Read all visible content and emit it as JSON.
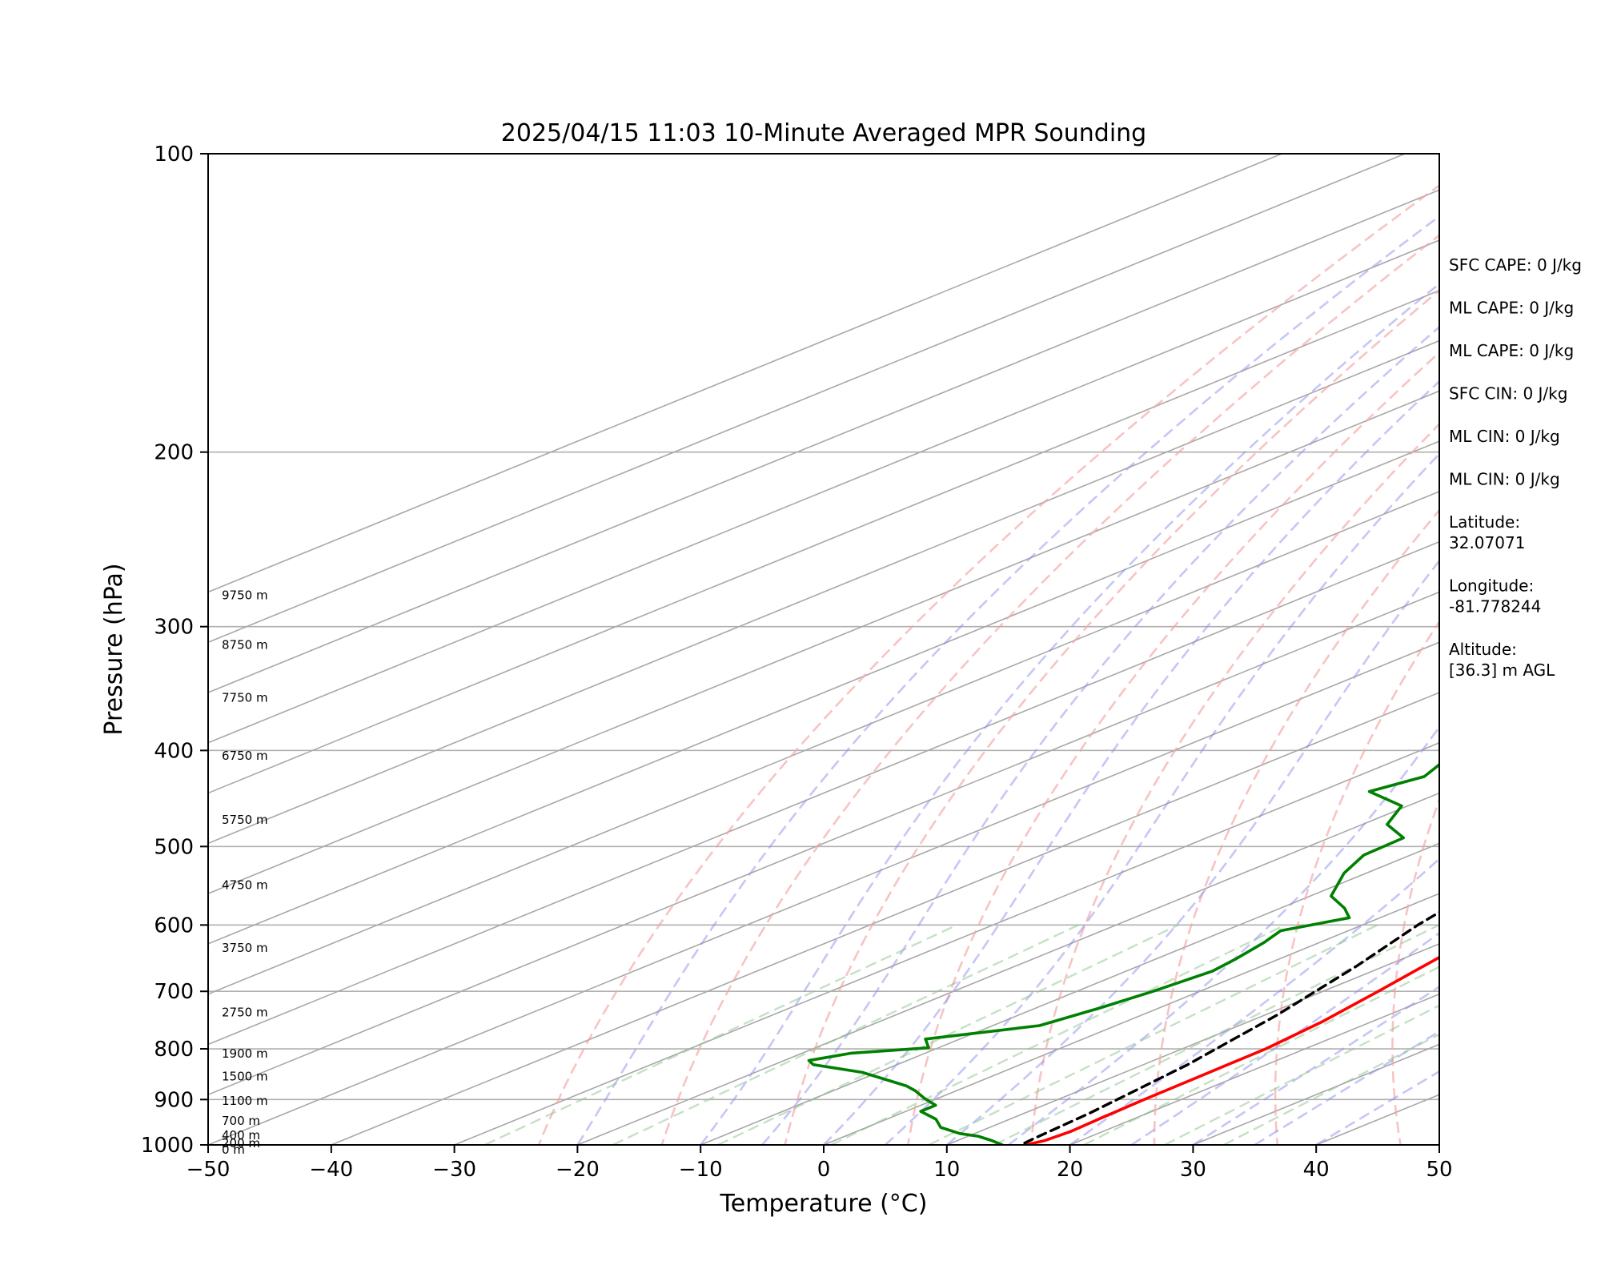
{
  "chart_data": {
    "type": "skew-t",
    "title": "2025/04/15 11:03 10-Minute Averaged MPR Sounding",
    "xlabel": "Temperature (°C)",
    "ylabel": "Pressure (hPa)",
    "xlim": [
      -50,
      50
    ],
    "ylim": [
      1000,
      100
    ],
    "y_scale": "log",
    "x_ticks": [
      "−50",
      "−40",
      "−30",
      "−20",
      "−10",
      "0",
      "10",
      "20",
      "30",
      "40",
      "50"
    ],
    "y_ticks": [
      1000,
      900,
      800,
      700,
      600,
      500,
      400,
      300,
      200,
      100
    ],
    "grid": "horizontal",
    "colors": {
      "temperature": "#ff0000",
      "dewpoint": "#008000",
      "parcel": "#000000",
      "dry_adiabats": "#f4a3a3",
      "moist_adiabats": "#8e8ef0",
      "mixing_ratio": "#8cc48c"
    },
    "series": [
      {
        "key": "temperature",
        "points": [
          [
            -15.2,
            281
          ],
          [
            -14.3,
            290
          ],
          [
            -13.0,
            300
          ],
          [
            -10.0,
            326
          ],
          [
            -6.0,
            366
          ],
          [
            -2.0,
            410
          ],
          [
            2.5,
            465
          ],
          [
            6.0,
            510
          ],
          [
            8.5,
            553
          ],
          [
            10.8,
            600
          ],
          [
            12.8,
            650
          ],
          [
            14.5,
            700
          ],
          [
            16.0,
            752
          ],
          [
            16.8,
            800
          ],
          [
            16.9,
            850
          ],
          [
            17.0,
            900
          ],
          [
            17.2,
            940
          ],
          [
            17.4,
            970
          ],
          [
            17.1,
            990
          ],
          [
            16.4,
            1000
          ]
        ]
      },
      {
        "key": "dewpoint",
        "points": [
          [
            -36.0,
            279
          ],
          [
            -48.8,
            300
          ],
          [
            -37.5,
            322
          ],
          [
            -36.0,
            335
          ],
          [
            -39.5,
            348
          ],
          [
            -36.0,
            360
          ],
          [
            -29.5,
            383
          ],
          [
            -29.0,
            397
          ],
          [
            -25.8,
            412
          ],
          [
            -24.5,
            425
          ],
          [
            -26.0,
            440
          ],
          [
            -20.5,
            455
          ],
          [
            -18.0,
            475
          ],
          [
            -14.0,
            490
          ],
          [
            -13.8,
            510
          ],
          [
            -11.8,
            532
          ],
          [
            -8.3,
            561
          ],
          [
            -4.8,
            577
          ],
          [
            -2.5,
            590
          ],
          [
            -5.5,
            608
          ],
          [
            -4.5,
            625
          ],
          [
            -3.5,
            650
          ],
          [
            -3.0,
            668
          ],
          [
            -3.8,
            700
          ],
          [
            -4.8,
            727
          ],
          [
            -6.2,
            758
          ],
          [
            -12.8,
            782
          ],
          [
            -10.8,
            798
          ],
          [
            -16.0,
            808
          ],
          [
            -18.0,
            822
          ],
          [
            -16.8,
            830
          ],
          [
            -11.3,
            845
          ],
          [
            -5.0,
            872
          ],
          [
            -3.3,
            882
          ],
          [
            -1.0,
            898
          ],
          [
            1.2,
            912
          ],
          [
            1.2,
            925
          ],
          [
            4.0,
            942
          ],
          [
            6.0,
            960
          ],
          [
            8.8,
            974
          ],
          [
            10.8,
            980
          ],
          [
            12.8,
            990
          ],
          [
            14.5,
            1000
          ]
        ]
      },
      {
        "key": "parcel",
        "points": [
          [
            -25.8,
            281
          ],
          [
            -22.5,
            300
          ],
          [
            -17.0,
            340
          ],
          [
            -11.0,
            393
          ],
          [
            -5.7,
            445
          ],
          [
            -1.7,
            495
          ],
          [
            2.0,
            546
          ],
          [
            4.5,
            600
          ],
          [
            7.7,
            660
          ],
          [
            11.0,
            740
          ],
          [
            13.6,
            830
          ],
          [
            15.3,
            930
          ],
          [
            15.8,
            985
          ],
          [
            16.0,
            1000
          ]
        ]
      }
    ],
    "height_labels": [
      {
        "text": "9750 m",
        "p": 279
      },
      {
        "text": "8750 m",
        "p": 313
      },
      {
        "text": "7750 m",
        "p": 354
      },
      {
        "text": "6750 m",
        "p": 405
      },
      {
        "text": "5750 m",
        "p": 470
      },
      {
        "text": "4750 m",
        "p": 547
      },
      {
        "text": "3750 m",
        "p": 633
      },
      {
        "text": "2750 m",
        "p": 735
      },
      {
        "text": "1900 m",
        "p": 809
      },
      {
        "text": "1500 m",
        "p": 853
      },
      {
        "text": "1100 m",
        "p": 903
      },
      {
        "text": "700 m",
        "p": 946
      },
      {
        "text": "400 m",
        "p": 978
      },
      {
        "text": "200 m",
        "p": 996
      },
      {
        "text": "0 m",
        "p": 1011
      }
    ],
    "annotations": [
      [
        "SFC CAPE: 0 J/kg"
      ],
      [
        "ML CAPE: 0 J/kg"
      ],
      [
        "ML CAPE: 0 J/kg"
      ],
      [
        "SFC CIN: 0 J/kg"
      ],
      [
        "ML CIN: 0 J/kg"
      ],
      [
        "ML CIN: 0 J/kg"
      ],
      [
        "Latitude:",
        "32.07071"
      ],
      [
        "Longitude:",
        "-81.778244"
      ],
      [
        "Altitude:",
        "[36.3] m AGL"
      ]
    ]
  }
}
